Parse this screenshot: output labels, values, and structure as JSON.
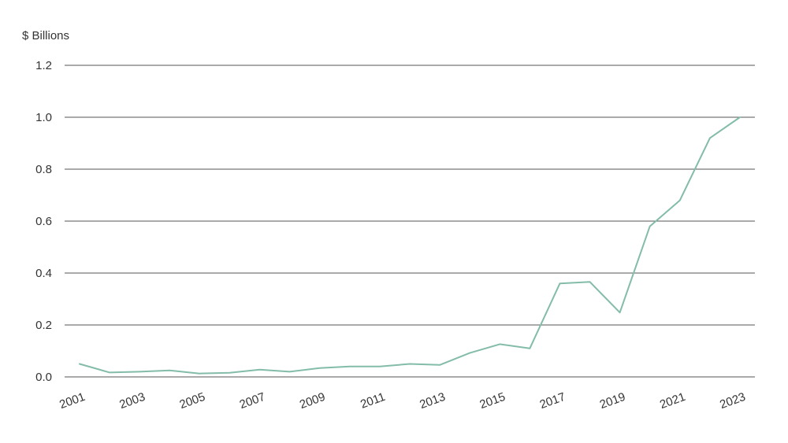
{
  "chart_data": {
    "type": "line",
    "ylabel": "$ Billions",
    "xlabel": "",
    "title": "",
    "ylim": [
      0,
      1.2
    ],
    "yticks": [
      "0.0",
      "0.2",
      "0.4",
      "0.6",
      "0.8",
      "1.0",
      "1.2"
    ],
    "xtick_labels": [
      "2001",
      "2003",
      "2005",
      "2007",
      "2009",
      "2011",
      "2013",
      "2015",
      "2017",
      "2019",
      "2021",
      "2023"
    ],
    "grid": true,
    "legend": "none",
    "line_color": "#83bca8",
    "series": [
      {
        "x": [
          2001,
          2002,
          2003,
          2004,
          2005,
          2006,
          2007,
          2008,
          2009,
          2010,
          2011,
          2012,
          2013,
          2014,
          2015,
          2016,
          2017,
          2018,
          2019,
          2020,
          2021,
          2022,
          2023
        ],
        "values": [
          0.05,
          0.017,
          0.02,
          0.025,
          0.013,
          0.016,
          0.028,
          0.02,
          0.034,
          0.04,
          0.04,
          0.05,
          0.046,
          0.092,
          0.126,
          0.11,
          0.36,
          0.366,
          0.248,
          0.58,
          0.68,
          0.92,
          1.0
        ]
      }
    ]
  }
}
